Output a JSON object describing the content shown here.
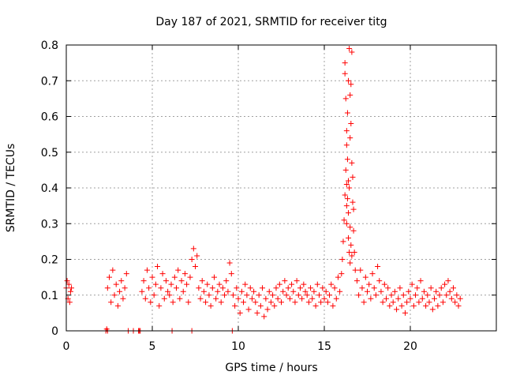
{
  "chart_data": {
    "type": "scatter",
    "title": "Day 187 of 2021, SRMTID for receiver titg",
    "xlabel": "GPS time / hours",
    "ylabel": "SRMTID / TECUs",
    "xlim": [
      0,
      25
    ],
    "ylim": [
      0,
      0.8
    ],
    "xticks": [
      0,
      5,
      10,
      15,
      20
    ],
    "xtick_labels": [
      "0",
      "5",
      "10",
      "15",
      "20"
    ],
    "yticks": [
      0,
      0.1,
      0.2,
      0.3,
      0.4,
      0.5,
      0.6,
      0.7,
      0.8
    ],
    "ytick_labels": [
      "0",
      "0.1",
      "0.2",
      "0.3",
      "0.4",
      "0.5",
      "0.6",
      "0.7",
      "0.8"
    ],
    "grid": true,
    "marker": "plus",
    "color": "#ff0000",
    "series": [
      {
        "name": "SRMTID",
        "x": [
          0.0,
          0.05,
          0.1,
          0.15,
          0.2,
          0.25,
          0.3,
          2.3,
          2.35,
          2.4,
          2.4,
          2.5,
          2.6,
          2.7,
          2.8,
          2.9,
          3.0,
          3.1,
          3.2,
          3.3,
          3.4,
          3.5,
          3.6,
          3.9,
          4.2,
          4.25,
          4.3,
          4.4,
          4.5,
          4.6,
          4.7,
          4.8,
          4.9,
          5.0,
          5.1,
          5.2,
          5.3,
          5.4,
          5.5,
          5.6,
          5.7,
          5.8,
          5.9,
          6.0,
          6.1,
          6.2,
          6.3,
          6.4,
          6.5,
          6.6,
          6.7,
          6.8,
          6.9,
          7.0,
          7.1,
          7.2,
          6.15,
          7.3,
          7.3,
          7.4,
          7.5,
          7.6,
          7.7,
          7.8,
          7.9,
          8.0,
          8.1,
          8.2,
          8.3,
          8.4,
          8.5,
          8.6,
          8.7,
          8.8,
          8.9,
          9.0,
          9.1,
          9.2,
          9.3,
          9.4,
          9.5,
          9.6,
          9.65,
          9.7,
          9.8,
          9.9,
          10.0,
          10.1,
          10.2,
          10.3,
          10.4,
          10.5,
          10.6,
          10.7,
          10.8,
          10.9,
          11.0,
          11.1,
          11.2,
          11.3,
          11.4,
          11.5,
          11.6,
          11.7,
          11.8,
          11.9,
          12.0,
          12.1,
          12.2,
          12.3,
          12.4,
          12.5,
          12.6,
          12.7,
          12.8,
          12.9,
          13.0,
          13.1,
          13.2,
          13.3,
          13.4,
          13.5,
          13.6,
          13.7,
          13.8,
          13.9,
          14.0,
          14.1,
          14.2,
          14.3,
          14.4,
          14.5,
          14.6,
          14.7,
          14.8,
          14.9,
          15.0,
          15.1,
          15.2,
          15.3,
          15.4,
          15.5,
          15.6,
          15.7,
          15.8,
          15.9,
          16.0,
          16.05,
          16.1,
          16.15,
          16.2,
          16.25,
          16.3,
          16.35,
          16.4,
          16.45,
          16.5,
          16.55,
          16.6,
          16.65,
          16.7,
          16.75,
          16.8,
          16.2,
          16.2,
          16.25,
          16.3,
          16.35,
          16.3,
          16.4,
          16.45,
          16.5,
          16.55,
          16.6,
          16.65,
          16.7,
          16.3,
          16.35,
          16.4,
          16.45,
          16.5,
          16.55,
          16.6,
          16.3,
          16.4,
          16.5,
          16.9,
          17.0,
          17.1,
          17.2,
          17.3,
          17.4,
          17.5,
          17.6,
          17.7,
          17.8,
          17.9,
          18.0,
          18.1,
          18.2,
          18.3,
          18.4,
          18.5,
          18.6,
          18.7,
          18.8,
          18.9,
          19.0,
          19.1,
          19.2,
          19.3,
          19.4,
          19.5,
          19.6,
          19.7,
          19.8,
          19.9,
          20.0,
          20.1,
          20.2,
          20.3,
          20.4,
          20.5,
          20.6,
          20.7,
          20.8,
          20.9,
          21.0,
          21.1,
          21.2,
          21.3,
          21.4,
          21.5,
          21.6,
          21.7,
          21.8,
          21.9,
          22.0,
          22.1,
          22.2,
          22.3,
          22.4,
          22.5,
          22.6,
          22.7,
          22.8,
          22.9
        ],
        "y": [
          0.12,
          0.14,
          0.09,
          0.13,
          0.08,
          0.11,
          0.12,
          0.0,
          0.005,
          0.0,
          0.12,
          0.15,
          0.08,
          0.17,
          0.1,
          0.13,
          0.07,
          0.11,
          0.14,
          0.09,
          0.12,
          0.16,
          0.0,
          0.0,
          0.0,
          0.0,
          0.0,
          0.11,
          0.14,
          0.09,
          0.17,
          0.12,
          0.08,
          0.15,
          0.1,
          0.13,
          0.18,
          0.07,
          0.12,
          0.16,
          0.09,
          0.14,
          0.11,
          0.1,
          0.13,
          0.08,
          0.15,
          0.12,
          0.17,
          0.09,
          0.14,
          0.11,
          0.16,
          0.13,
          0.08,
          0.15,
          0.0,
          0.0,
          0.2,
          0.23,
          0.18,
          0.21,
          0.12,
          0.09,
          0.14,
          0.11,
          0.08,
          0.13,
          0.1,
          0.07,
          0.12,
          0.15,
          0.09,
          0.11,
          0.13,
          0.08,
          0.12,
          0.1,
          0.14,
          0.11,
          0.19,
          0.16,
          0.0,
          0.1,
          0.07,
          0.12,
          0.09,
          0.05,
          0.11,
          0.08,
          0.13,
          0.1,
          0.06,
          0.12,
          0.09,
          0.11,
          0.08,
          0.05,
          0.1,
          0.07,
          0.12,
          0.04,
          0.09,
          0.06,
          0.11,
          0.08,
          0.1,
          0.07,
          0.12,
          0.09,
          0.13,
          0.08,
          0.11,
          0.14,
          0.1,
          0.12,
          0.09,
          0.13,
          0.11,
          0.08,
          0.14,
          0.1,
          0.12,
          0.09,
          0.13,
          0.11,
          0.1,
          0.08,
          0.12,
          0.09,
          0.11,
          0.07,
          0.13,
          0.1,
          0.08,
          0.12,
          0.09,
          0.11,
          0.08,
          0.1,
          0.13,
          0.07,
          0.12,
          0.09,
          0.15,
          0.11,
          0.16,
          0.2,
          0.25,
          0.31,
          0.38,
          0.45,
          0.52,
          0.61,
          0.7,
          0.79,
          0.66,
          0.58,
          0.47,
          0.36,
          0.28,
          0.22,
          0.17,
          0.75,
          0.72,
          0.65,
          0.56,
          0.48,
          0.41,
          0.33,
          0.4,
          0.54,
          0.69,
          0.78,
          0.43,
          0.34,
          0.3,
          0.37,
          0.26,
          0.22,
          0.19,
          0.24,
          0.21,
          0.35,
          0.42,
          0.29,
          0.14,
          0.1,
          0.17,
          0.12,
          0.08,
          0.15,
          0.11,
          0.13,
          0.09,
          0.16,
          0.12,
          0.1,
          0.18,
          0.14,
          0.11,
          0.08,
          0.13,
          0.09,
          0.12,
          0.07,
          0.1,
          0.08,
          0.11,
          0.06,
          0.09,
          0.12,
          0.07,
          0.1,
          0.05,
          0.08,
          0.11,
          0.09,
          0.13,
          0.07,
          0.1,
          0.12,
          0.08,
          0.14,
          0.09,
          0.11,
          0.07,
          0.1,
          0.08,
          0.12,
          0.06,
          0.09,
          0.11,
          0.07,
          0.1,
          0.12,
          0.08,
          0.13,
          0.1,
          0.14,
          0.11,
          0.09,
          0.12,
          0.08,
          0.1,
          0.07,
          0.09
        ]
      }
    ]
  }
}
